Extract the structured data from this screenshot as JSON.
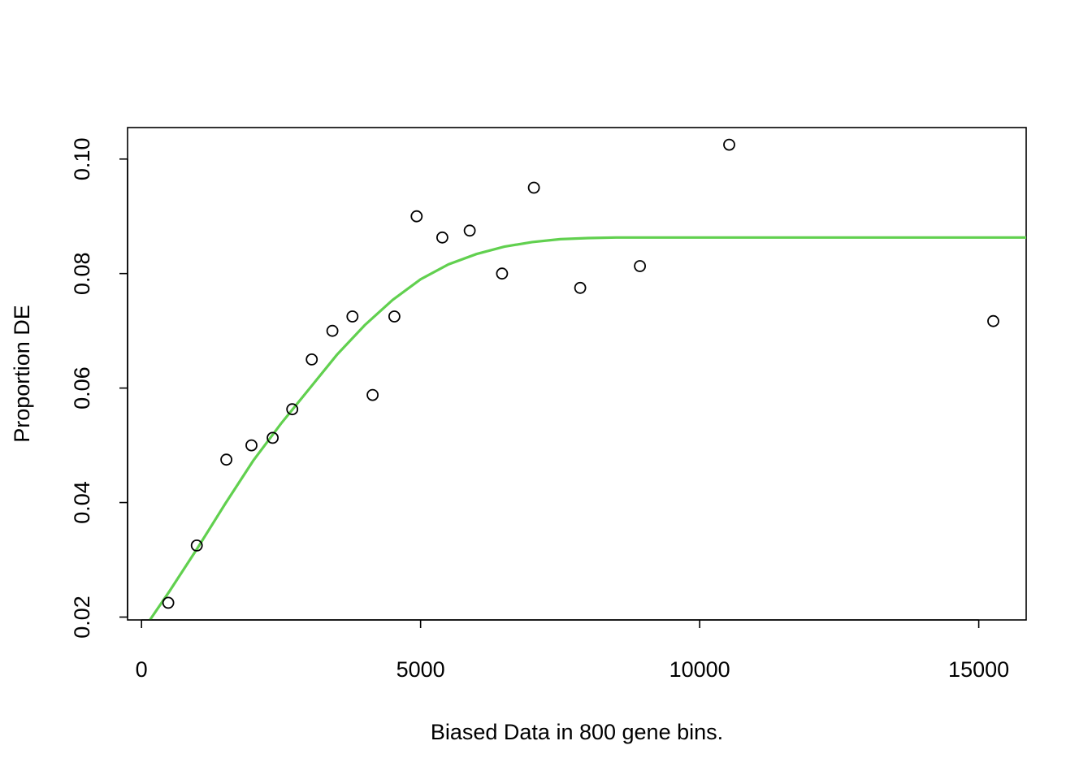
{
  "chart_data": {
    "type": "scatter",
    "title": "",
    "xlabel": "Biased Data in 800 gene bins.",
    "ylabel": "Proportion DE",
    "xlim": [
      -250,
      15850
    ],
    "ylim": [
      0.0195,
      0.1055
    ],
    "xticks": [
      0,
      5000,
      10000,
      15000
    ],
    "xtick_labels": [
      "0",
      "5000",
      "10000",
      "15000"
    ],
    "yticks": [
      0.02,
      0.04,
      0.06,
      0.08,
      0.1
    ],
    "ytick_labels": [
      "0.02",
      "0.04",
      "0.06",
      "0.08",
      "0.10"
    ],
    "grid": false,
    "points": [
      {
        "x": 480,
        "y": 0.0225
      },
      {
        "x": 990,
        "y": 0.0325
      },
      {
        "x": 1520,
        "y": 0.0475
      },
      {
        "x": 1970,
        "y": 0.05
      },
      {
        "x": 2350,
        "y": 0.0513
      },
      {
        "x": 2700,
        "y": 0.0563
      },
      {
        "x": 3050,
        "y": 0.065
      },
      {
        "x": 3420,
        "y": 0.07
      },
      {
        "x": 3780,
        "y": 0.0725
      },
      {
        "x": 4140,
        "y": 0.0588
      },
      {
        "x": 4530,
        "y": 0.0725
      },
      {
        "x": 4930,
        "y": 0.09
      },
      {
        "x": 5390,
        "y": 0.0863
      },
      {
        "x": 5880,
        "y": 0.0875
      },
      {
        "x": 6460,
        "y": 0.08
      },
      {
        "x": 7030,
        "y": 0.095
      },
      {
        "x": 7860,
        "y": 0.0775
      },
      {
        "x": 8930,
        "y": 0.0813
      },
      {
        "x": 10530,
        "y": 0.1025
      },
      {
        "x": 15260,
        "y": 0.0717
      }
    ],
    "fit_line": {
      "color": "#61d04f",
      "x": [
        150,
        500,
        1000,
        1500,
        2000,
        2500,
        3000,
        3500,
        4000,
        4500,
        5000,
        5500,
        6000,
        6500,
        7000,
        7500,
        8000,
        8500,
        9000,
        10000,
        12000,
        14000,
        15850
      ],
      "y": [
        0.0195,
        0.0245,
        0.032,
        0.0398,
        0.0473,
        0.0538,
        0.0598,
        0.0658,
        0.071,
        0.0754,
        0.079,
        0.0816,
        0.0834,
        0.0847,
        0.0855,
        0.086,
        0.0862,
        0.0863,
        0.0863,
        0.0863,
        0.0863,
        0.0863,
        0.0863
      ]
    }
  }
}
